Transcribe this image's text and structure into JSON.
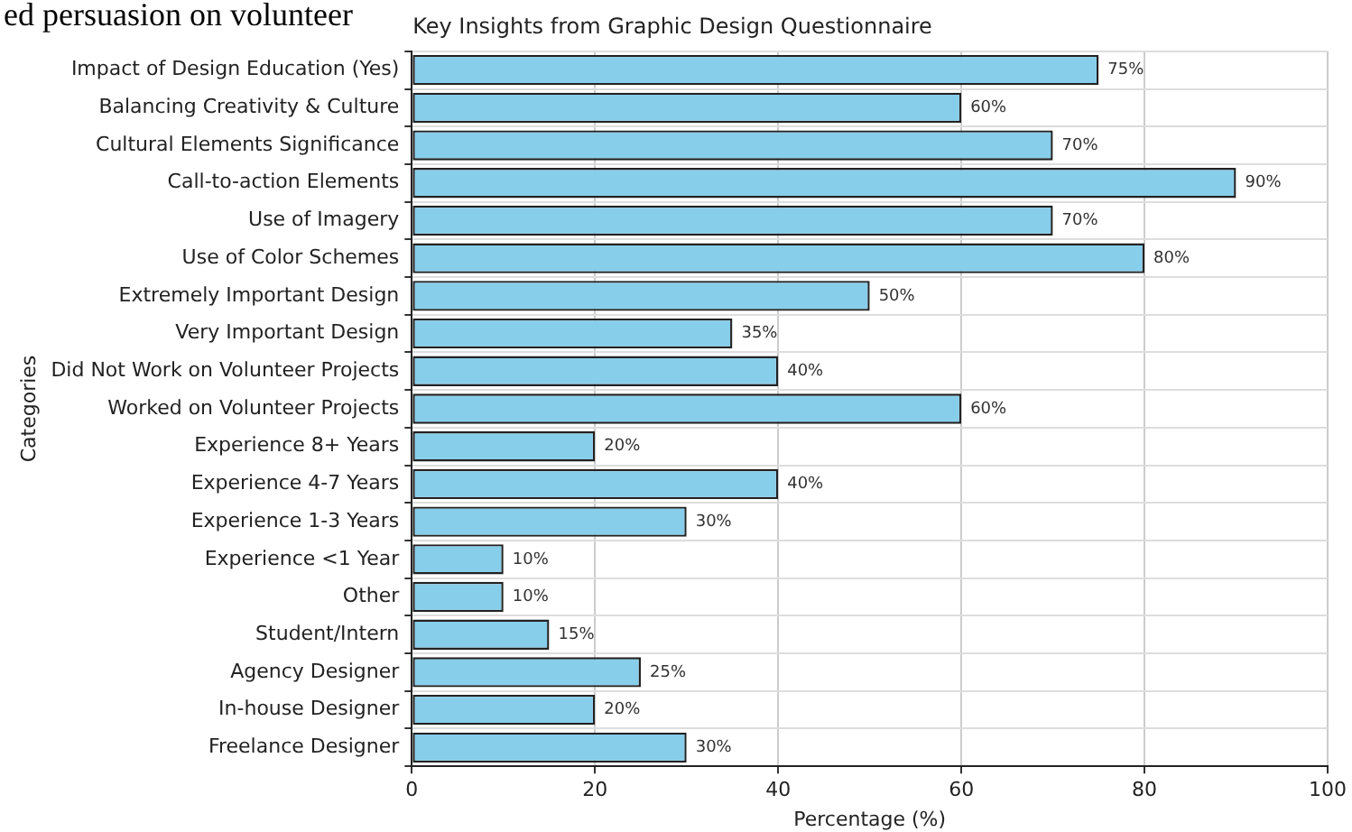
{
  "chart_data": {
    "type": "bar",
    "orientation": "horizontal",
    "title": "Key Insights from Graphic Design Questionnaire",
    "xlabel": "Percentage (%)",
    "ylabel": "Categories",
    "annotations": [
      "ed persuasion on volunteer"
    ],
    "categories": [
      "Impact of Design Education (Yes)",
      "Balancing Creativity & Culture",
      "Cultural Elements Significance",
      "Call-to-action Elements",
      "Use of Imagery",
      "Use of Color Schemes",
      "Extremely Important Design",
      "Very Important Design",
      "Did Not Work on Volunteer Projects",
      "Worked on Volunteer Projects",
      "Experience 8+ Years",
      "Experience 4-7 Years",
      "Experience 1-3 Years",
      "Experience <1 Year",
      "Other",
      "Student/Intern",
      "Agency Designer",
      "In-house Designer",
      "Freelance Designer"
    ],
    "values": [
      75,
      60,
      70,
      90,
      70,
      80,
      50,
      35,
      40,
      60,
      20,
      40,
      30,
      10,
      10,
      15,
      25,
      20,
      30
    ],
    "value_labels": [
      "75%",
      "60%",
      "70%",
      "90%",
      "70%",
      "80%",
      "50%",
      "35%",
      "40%",
      "60%",
      "20%",
      "40%",
      "30%",
      "10%",
      "10%",
      "15%",
      "25%",
      "20%",
      "30%"
    ],
    "color": "#87ceeb",
    "xlim": [
      0,
      100
    ],
    "xticks": [
      0,
      20,
      40,
      60,
      80,
      100
    ],
    "grid": true
  }
}
